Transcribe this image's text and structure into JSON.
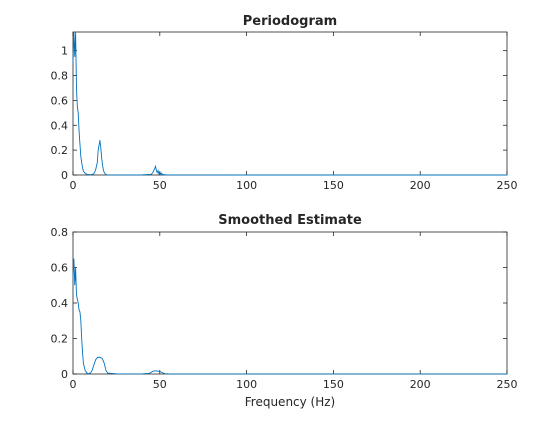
{
  "figure": {
    "background": "#ffffff",
    "line_color": "#0072BD",
    "axis_color": "#262626"
  },
  "chart_data": [
    {
      "type": "line",
      "title": "Periodogram",
      "xlabel": "",
      "ylabel": "",
      "xlim": [
        0,
        250
      ],
      "ylim": [
        0,
        1.15
      ],
      "xticks": [
        0,
        50,
        100,
        150,
        200,
        250
      ],
      "yticks": [
        0,
        0.2,
        0.4,
        0.6,
        0.8,
        1
      ],
      "xtick_labels": [
        "0",
        "50",
        "100",
        "150",
        "200",
        "250"
      ],
      "ytick_labels": [
        "0",
        "0.2",
        "0.4",
        "0.6",
        "0.8",
        "1"
      ],
      "grid": false,
      "series": [
        {
          "color": "#0072BD",
          "x": [
            0,
            0.5,
            1,
            1.5,
            2,
            2.5,
            3,
            3.5,
            4,
            4.5,
            5,
            5.5,
            6,
            7,
            8,
            10,
            12,
            13,
            14,
            14.5,
            15,
            15.5,
            16,
            16.5,
            17,
            17.5,
            18,
            18.5,
            19,
            20,
            25,
            30,
            40,
            45,
            46,
            47,
            47.5,
            48,
            48.5,
            49,
            49.5,
            50,
            50.5,
            51,
            51.5,
            52,
            53,
            55,
            60,
            100,
            150,
            200,
            250
          ],
          "y": [
            0.9,
            1.15,
            0.95,
            1.15,
            0.7,
            0.55,
            0.5,
            0.35,
            0.25,
            0.15,
            0.1,
            0.06,
            0.03,
            0.015,
            0.005,
            0.002,
            0.01,
            0.04,
            0.1,
            0.2,
            0.24,
            0.28,
            0.22,
            0.14,
            0.08,
            0.04,
            0.02,
            0.01,
            0.003,
            0.001,
            0.0005,
            0.0005,
            0.001,
            0.005,
            0.02,
            0.05,
            0.07,
            0.04,
            0.02,
            0.035,
            0.01,
            0.025,
            0.005,
            0.015,
            0.003,
            0.004,
            0.001,
            0.0005,
            0.0003,
            0.0001,
            0.0001,
            0.0001,
            0.0001
          ]
        }
      ]
    },
    {
      "type": "line",
      "title": "Smoothed Estimate",
      "xlabel": "Frequency (Hz)",
      "ylabel": "",
      "xlim": [
        0,
        250
      ],
      "ylim": [
        0,
        0.8
      ],
      "xticks": [
        0,
        50,
        100,
        150,
        200,
        250
      ],
      "yticks": [
        0,
        0.2,
        0.4,
        0.6,
        0.8
      ],
      "xtick_labels": [
        "0",
        "50",
        "100",
        "150",
        "200",
        "250"
      ],
      "ytick_labels": [
        "0",
        "0.2",
        "0.4",
        "0.6",
        "0.8"
      ],
      "grid": false,
      "series": [
        {
          "color": "#0072BD",
          "x": [
            0,
            0.5,
            1,
            1.5,
            2,
            2.5,
            3,
            3.5,
            4,
            4.5,
            5,
            5.5,
            6,
            7,
            8,
            9,
            10,
            11,
            12,
            13,
            14,
            15,
            16,
            17,
            18,
            18.5,
            19,
            20,
            25,
            30,
            40,
            44,
            45,
            46,
            47,
            48,
            49,
            50,
            51,
            52,
            53,
            55,
            60,
            100,
            150,
            200,
            250
          ],
          "y": [
            0.55,
            0.65,
            0.5,
            0.6,
            0.45,
            0.42,
            0.4,
            0.36,
            0.35,
            0.3,
            0.2,
            0.12,
            0.06,
            0.02,
            0.005,
            0.002,
            0.005,
            0.02,
            0.05,
            0.08,
            0.092,
            0.095,
            0.092,
            0.085,
            0.06,
            0.04,
            0.02,
            0.005,
            0.001,
            0.0005,
            0.001,
            0.004,
            0.01,
            0.015,
            0.017,
            0.018,
            0.016,
            0.014,
            0.01,
            0.005,
            0.002,
            0.0008,
            0.0004,
            0.0001,
            0.0001,
            0.0001,
            0.0001
          ]
        }
      ]
    }
  ]
}
